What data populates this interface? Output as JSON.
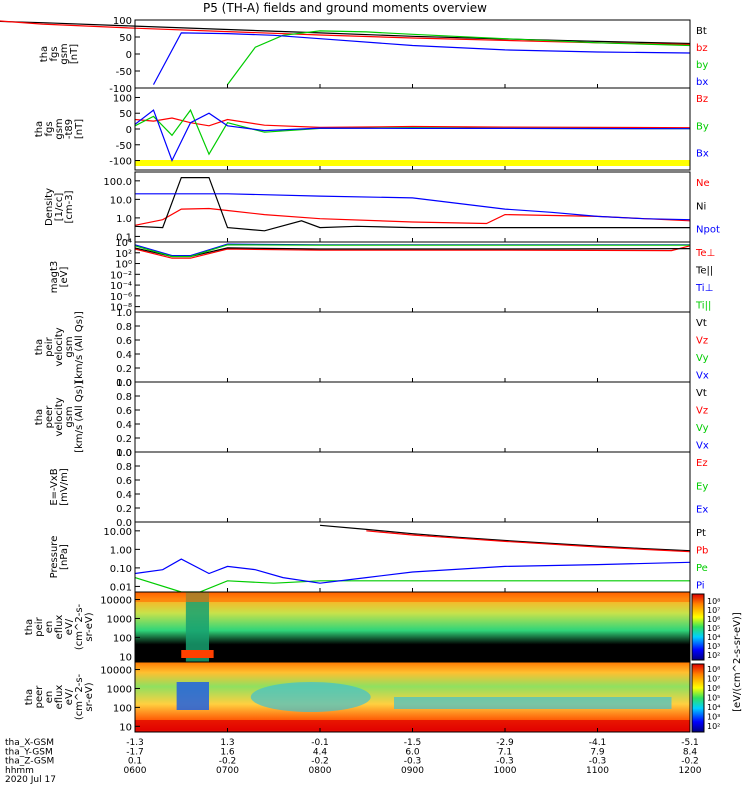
{
  "title": "P5 (TH-A) fields and ground moments overview",
  "chart_data": [
    {
      "type": "line",
      "panel": "fgs_gsm",
      "ylabel": "tha fgs gsm [nT]",
      "ylim": [
        -100,
        100
      ],
      "yticks": [
        100,
        50,
        0,
        -50,
        -100
      ],
      "series": [
        {
          "name": "Bt",
          "color": "#000000",
          "x": [
            4.0,
            5.0,
            6.0,
            7.0,
            8.0,
            9.0,
            10.0,
            11.0,
            12.0
          ],
          "y": [
            100,
            92,
            82,
            72,
            62,
            52,
            44,
            37,
            31
          ]
        },
        {
          "name": "bz",
          "color": "#ff0000",
          "x": [
            4.5,
            5.0,
            6.0,
            7.0,
            8.0,
            9.0,
            10.0,
            11.0,
            12.0
          ],
          "y": [
            98,
            88,
            76,
            66,
            56,
            47,
            40,
            33,
            28
          ]
        },
        {
          "name": "by",
          "color": "#00cc00",
          "x": [
            7.0,
            7.3,
            7.6,
            8.0,
            8.5,
            9.0,
            10.0,
            11.0,
            12.0
          ],
          "y": [
            -90,
            20,
            55,
            68,
            65,
            58,
            45,
            33,
            25
          ]
        },
        {
          "name": "bx",
          "color": "#0000ff",
          "x": [
            6.2,
            6.5,
            7.0,
            7.5,
            8.0,
            9.0,
            10.0,
            11.0,
            12.0
          ],
          "y": [
            -90,
            62,
            60,
            55,
            45,
            25,
            12,
            6,
            3
          ]
        }
      ]
    },
    {
      "type": "line",
      "panel": "fgs_gsm_t89",
      "ylabel": "tha fgs gsm -t89 [nT]",
      "ylim": [
        -130,
        130
      ],
      "yticks": [
        100,
        50,
        0,
        -50,
        -100
      ],
      "series": [
        {
          "name": "Bz",
          "color": "#ff0000",
          "x": [
            6.0,
            6.2,
            6.4,
            6.6,
            6.8,
            7.0,
            7.4,
            8.0,
            9.0,
            10.0,
            12.0
          ],
          "y": [
            30,
            25,
            35,
            20,
            10,
            30,
            12,
            5,
            8,
            6,
            4
          ]
        },
        {
          "name": "By",
          "color": "#00cc00",
          "x": [
            6.0,
            6.2,
            6.4,
            6.6,
            6.8,
            7.0,
            7.4,
            8.0,
            9.0,
            10.0,
            12.0
          ],
          "y": [
            10,
            40,
            -20,
            60,
            -80,
            20,
            -10,
            2,
            4,
            2,
            1
          ]
        },
        {
          "name": "Bx",
          "color": "#0000ff",
          "x": [
            6.0,
            6.2,
            6.4,
            6.6,
            6.8,
            7.0,
            7.4,
            8.0,
            9.0,
            10.0,
            12.0
          ],
          "y": [
            15,
            60,
            -100,
            20,
            50,
            10,
            -5,
            3,
            2,
            2,
            1
          ]
        }
      ]
    },
    {
      "type": "line",
      "panel": "density",
      "ylabel": "Density [1/cc] [cm-3]",
      "yscale": "log",
      "ylim": [
        0.05,
        300
      ],
      "yticks": [
        "100.0",
        "10.0",
        "1.0",
        "0.1"
      ],
      "series": [
        {
          "name": "Ne",
          "color": "#ff0000",
          "x": [
            6.0,
            6.3,
            6.5,
            6.8,
            7.0,
            7.4,
            8.0,
            9.0,
            9.8,
            10.0,
            11.0,
            12.0
          ],
          "y": [
            0.4,
            0.8,
            3.0,
            3.2,
            2.5,
            1.5,
            0.9,
            0.6,
            0.5,
            1.5,
            1.2,
            0.7
          ]
        },
        {
          "name": "Ni",
          "color": "#000000",
          "x": [
            6.0,
            6.3,
            6.5,
            6.8,
            7.0,
            7.4,
            7.8,
            8.0,
            8.4,
            9.0,
            10.0,
            11.0,
            12.0
          ],
          "y": [
            0.35,
            0.3,
            150,
            150,
            0.3,
            0.2,
            0.7,
            0.3,
            0.35,
            0.3,
            0.3,
            0.3,
            0.3
          ]
        },
        {
          "name": "Npot",
          "color": "#0000ff",
          "x": [
            6.0,
            7.0,
            8.0,
            9.0,
            9.5,
            10.0,
            10.5,
            11.0,
            11.5,
            12.0
          ],
          "y": [
            20,
            20,
            15,
            12,
            6,
            3,
            2,
            1.2,
            0.9,
            0.8
          ]
        }
      ]
    },
    {
      "type": "line",
      "panel": "temperature",
      "ylabel": "magt3 [eV]",
      "yscale": "log",
      "ylim": [
        1e-09,
        10000.0
      ],
      "yticks": [
        "10^4",
        "10^2",
        "10^0",
        "10^-2",
        "10^-4",
        "10^-6",
        "10^-8"
      ],
      "series": [
        {
          "name": "Te⊥",
          "color": "#ff0000",
          "x": [
            6.0,
            6.4,
            6.6,
            7.0,
            8.0,
            10.0,
            11.8,
            12.0
          ],
          "y": [
            500,
            10,
            10,
            500,
            300,
            300,
            250,
            2000
          ]
        },
        {
          "name": "Te||",
          "color": "#000000",
          "x": [
            6.0,
            6.4,
            6.6,
            7.0,
            8.0,
            10.0,
            12.0
          ],
          "y": [
            800,
            20,
            20,
            800,
            500,
            500,
            600
          ]
        },
        {
          "name": "Ti⊥",
          "color": "#0000ff",
          "x": [
            6.0,
            6.4,
            6.6,
            7.0,
            8.0,
            10.0,
            12.0
          ],
          "y": [
            3000,
            30,
            30,
            4000,
            3000,
            3000,
            3000
          ]
        },
        {
          "name": "Ti||",
          "color": "#00cc00",
          "x": [
            6.0,
            6.4,
            6.6,
            7.0,
            8.0,
            10.0,
            12.0
          ],
          "y": [
            2000,
            20,
            20,
            3000,
            2500,
            2500,
            2500
          ]
        }
      ]
    },
    {
      "type": "line",
      "panel": "peir_velocity",
      "ylabel": "tha peir velocity gsm [km/s (All Qs)]",
      "ylim": [
        0.0,
        1.0
      ],
      "yticks": [
        "1.0",
        "0.8",
        "0.6",
        "0.4",
        "0.2",
        "0.0"
      ],
      "series": [
        {
          "name": "Vt",
          "color": "#000000"
        },
        {
          "name": "Vz",
          "color": "#ff0000"
        },
        {
          "name": "Vy",
          "color": "#00cc00"
        },
        {
          "name": "Vx",
          "color": "#0000ff"
        }
      ]
    },
    {
      "type": "line",
      "panel": "peer_velocity",
      "ylabel": "tha peer velocity gsm [km/s (All Qs)]",
      "ylim": [
        0.0,
        1.0
      ],
      "yticks": [
        "1.0",
        "0.8",
        "0.6",
        "0.4",
        "0.2",
        "0.0"
      ],
      "series": [
        {
          "name": "Vt",
          "color": "#000000"
        },
        {
          "name": "Vz",
          "color": "#ff0000"
        },
        {
          "name": "Vy",
          "color": "#00cc00"
        },
        {
          "name": "Vx",
          "color": "#0000ff"
        }
      ]
    },
    {
      "type": "line",
      "panel": "efield",
      "ylabel": "E=-VxB [mV/m]",
      "ylim": [
        0.0,
        1.0
      ],
      "yticks": [
        "1.0",
        "0.8",
        "0.6",
        "0.4",
        "0.2",
        "0.0"
      ],
      "series": [
        {
          "name": "Ez",
          "color": "#ff0000"
        },
        {
          "name": "Ey",
          "color": "#00cc00"
        },
        {
          "name": "Ex",
          "color": "#0000ff"
        }
      ]
    },
    {
      "type": "line",
      "panel": "pressure",
      "ylabel": "Pressure [nPa]",
      "yscale": "log",
      "ylim": [
        0.005,
        30
      ],
      "yticks": [
        "10.00",
        "1.00",
        "0.10",
        "0.01"
      ],
      "series": [
        {
          "name": "Pt",
          "color": "#000000",
          "x": [
            8.0,
            8.5,
            9.0,
            9.5,
            10.0,
            10.5,
            11.0,
            11.5,
            12.0
          ],
          "y": [
            20,
            12,
            7,
            4.5,
            3,
            2.1,
            1.5,
            1.1,
            0.85
          ]
        },
        {
          "name": "Pb",
          "color": "#ff0000",
          "x": [
            8.5,
            9.0,
            9.5,
            10.0,
            10.5,
            11.0,
            11.5,
            12.0
          ],
          "y": [
            10,
            6,
            4,
            2.7,
            1.9,
            1.35,
            1.0,
            0.75
          ]
        },
        {
          "name": "Pe",
          "color": "#00cc00",
          "x": [
            6.0,
            6.5,
            6.7,
            7.0,
            7.5,
            8.0,
            9.0,
            10.0,
            11.0,
            12.0
          ],
          "y": [
            0.03,
            0.005,
            0.005,
            0.02,
            0.015,
            0.02,
            0.02,
            0.02,
            0.02,
            0.02
          ]
        },
        {
          "name": "Pi",
          "color": "#0000ff",
          "x": [
            6.0,
            6.3,
            6.5,
            6.8,
            7.0,
            7.3,
            7.6,
            8.0,
            8.5,
            9.0,
            10.0,
            11.0,
            12.0
          ],
          "y": [
            0.05,
            0.08,
            0.3,
            0.05,
            0.12,
            0.08,
            0.03,
            0.015,
            0.03,
            0.06,
            0.12,
            0.15,
            0.2
          ]
        }
      ]
    },
    {
      "type": "heatmap",
      "panel": "peir_eflux",
      "ylabel": "tha peir en eflux eV/(cm^2-s-sr-eV)",
      "yscale": "log",
      "ylim": [
        5,
        25000
      ],
      "yticks": [
        "10000",
        "1000",
        "100",
        "10"
      ]
    },
    {
      "type": "heatmap",
      "panel": "peer_eflux",
      "ylabel": "tha peer en eflux eV/(cm^2-s-sr-eV)",
      "yscale": "log",
      "ylim": [
        5,
        25000
      ],
      "yticks": [
        "10000",
        "1000",
        "100",
        "10"
      ]
    }
  ],
  "colorbar": {
    "label": "[eV/(cm^2-s-sr-eV)]",
    "label2": "[eV/(cm^2-s-sr-eV)]",
    "ticks_top": [
      "10^8",
      "10^7",
      "10^6",
      "10^5",
      "10^4",
      "10^3",
      "10^2"
    ],
    "ticks_bottom": [
      "10^8",
      "10^7",
      "10^6",
      "10^5",
      "10^4",
      "10^3",
      "10^2"
    ]
  },
  "ephemeris": {
    "rows": [
      {
        "label": "tha_X-GSM",
        "values": [
          "-1.3",
          "1.3",
          "-0.1",
          "-1.5",
          "-2.9",
          "-4.1",
          "-5.1"
        ]
      },
      {
        "label": "tha_Y-GSM",
        "values": [
          "-1.7",
          "1.6",
          "4.4",
          "6.0",
          "7.1",
          "7.9",
          "8.4"
        ]
      },
      {
        "label": "tha_Z-GSM",
        "values": [
          "0.1",
          "-0.2",
          "-0.2",
          "-0.3",
          "-0.3",
          "-0.3",
          "-0.2"
        ]
      },
      {
        "label": "hhmm",
        "values": [
          "0600",
          "0700",
          "0800",
          "0900",
          "1000",
          "1100",
          "1200"
        ]
      }
    ],
    "date": "2020 Jul 17"
  }
}
